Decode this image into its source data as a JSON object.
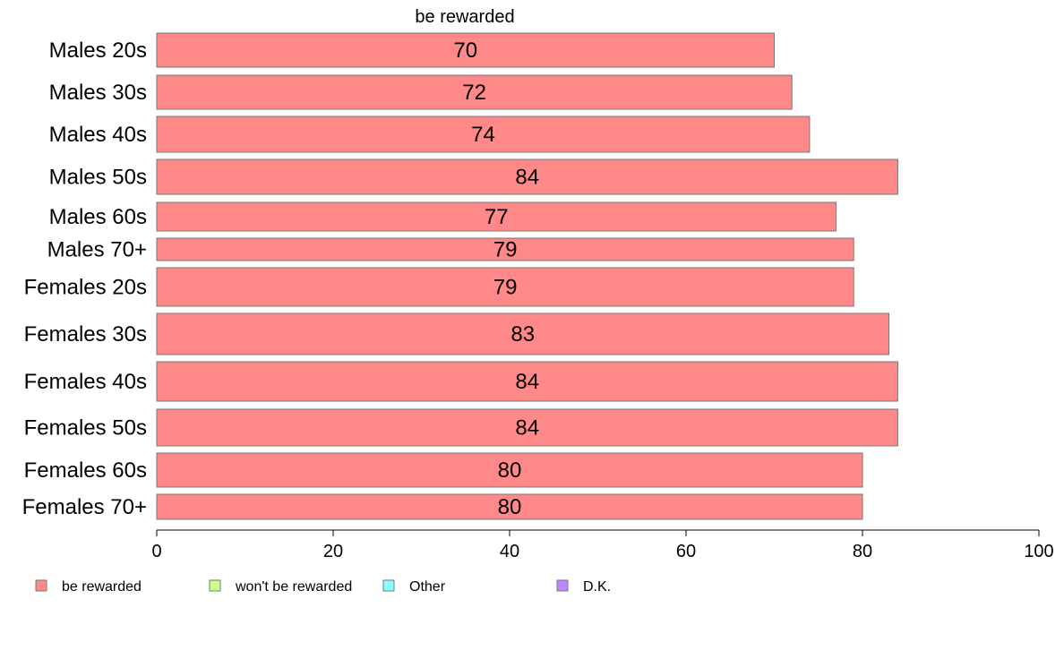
{
  "chart_data": {
    "type": "bar",
    "orientation": "horizontal",
    "title": "",
    "series_title": "be rewarded",
    "categories": [
      "Males 20s",
      "Males 30s",
      "Males 40s",
      "Males 50s",
      "Males 60s",
      "Males 70+",
      "Females 20s",
      "Females 30s",
      "Females 40s",
      "Females 50s",
      "Females 60s",
      "Females 70+"
    ],
    "series": [
      {
        "name": "be rewarded",
        "color": "#ff8888",
        "values": [
          70,
          72,
          74,
          84,
          77,
          79,
          79,
          83,
          84,
          84,
          80,
          80
        ],
        "labels": [
          "70",
          "72",
          "74",
          "84",
          "77",
          "79",
          "79",
          "83",
          "84",
          "84",
          "80",
          "80"
        ]
      }
    ],
    "xlim": [
      0,
      100
    ],
    "xticks": [
      "0",
      "20",
      "40",
      "60",
      "80",
      "100"
    ],
    "grid": false,
    "legend": {
      "placement": "bottom",
      "items": [
        {
          "label": "be rewarded",
          "color": "#ff8888"
        },
        {
          "label": "won't be rewarded",
          "color": "#ccff88"
        },
        {
          "label": "Other",
          "color": "#88ffff"
        },
        {
          "label": "D.K.",
          "color": "#bb88ff"
        }
      ]
    }
  }
}
